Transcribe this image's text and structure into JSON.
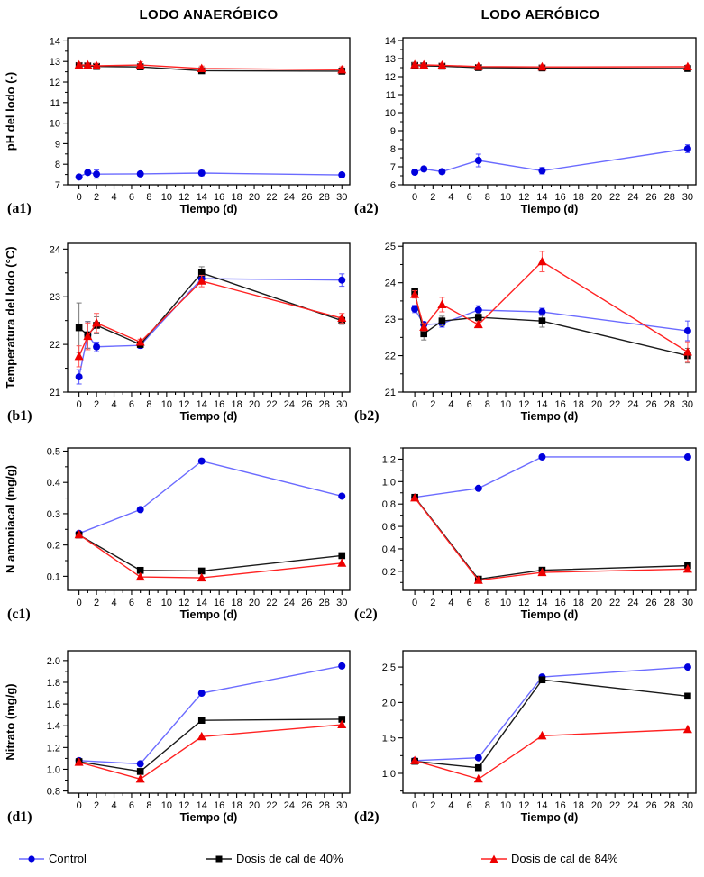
{
  "figure": {
    "columns": [
      "LODO ANAERÓBICO",
      "LODO AERÓBICO"
    ],
    "xlabel": "Tiempo (d)",
    "legend": [
      {
        "label": "Control",
        "marker": "circle",
        "marker_color": "#0000dd",
        "line_color": "#6b6bff",
        "err_color": "#5555ff"
      },
      {
        "label": "Dosis de cal de 40%",
        "marker": "square",
        "marker_color": "#000000",
        "line_color": "#1a1a1a",
        "err_color": "#777777"
      },
      {
        "label": "Dosis de cal de 84%",
        "marker": "triangle",
        "marker_color": "#ee0000",
        "line_color": "#ff2222",
        "err_color": "#ff5555"
      }
    ]
  },
  "chart_data": [
    {
      "id": "a1",
      "type": "line",
      "panel_label": "(a1)",
      "row": "a",
      "column": 0,
      "title": "LODO ANAERÓBICO",
      "xlabel": "Tiempo (d)",
      "ylabel": "pH del lodo (-)",
      "xlim": [
        -1.3,
        30.9
      ],
      "xtick_step": 2,
      "xminor_step": 1,
      "ylim": [
        7,
        14.15
      ],
      "yticks": [
        7,
        8,
        9,
        10,
        11,
        12,
        13,
        14
      ],
      "ydecimals": 0,
      "x": [
        0,
        1,
        2,
        7,
        14,
        30
      ],
      "series": [
        {
          "name": "Control",
          "values": [
            7.38,
            7.6,
            7.52,
            7.53,
            7.57,
            7.48
          ],
          "err": [
            0.08,
            0.06,
            0.2,
            0.1,
            0.13,
            0.1
          ]
        },
        {
          "name": "Dosis de cal de 40%",
          "values": [
            12.8,
            12.79,
            12.76,
            12.74,
            12.55,
            12.53
          ],
          "err": [
            0.1,
            0.1,
            0.12,
            0.12,
            0.1,
            0.12
          ]
        },
        {
          "name": "Dosis de cal de 84%",
          "values": [
            12.83,
            12.83,
            12.79,
            12.83,
            12.66,
            12.6
          ],
          "err": [
            0.1,
            0.1,
            0.12,
            0.15,
            0.12,
            0.14
          ]
        }
      ]
    },
    {
      "id": "a2",
      "type": "line",
      "panel_label": "(a2)",
      "row": "a",
      "column": 1,
      "title": "LODO AERÓBICO",
      "xlabel": "Tiempo (d)",
      "ylabel": "",
      "xlim": [
        -1.3,
        30.9
      ],
      "xtick_step": 2,
      "xminor_step": 1,
      "ylim": [
        6,
        14.15
      ],
      "yticks": [
        6,
        7,
        8,
        9,
        10,
        11,
        12,
        13,
        14
      ],
      "ydecimals": 0,
      "x": [
        0,
        1,
        3,
        7,
        14,
        30
      ],
      "series": [
        {
          "name": "Control",
          "values": [
            6.7,
            6.88,
            6.73,
            7.35,
            6.78,
            8.0
          ],
          "err": [
            0.1,
            0.12,
            0.12,
            0.35,
            0.18,
            0.22
          ]
        },
        {
          "name": "Dosis de cal de 40%",
          "values": [
            12.62,
            12.6,
            12.58,
            12.5,
            12.48,
            12.45
          ],
          "err": [
            0.12,
            0.12,
            0.12,
            0.12,
            0.1,
            0.1
          ]
        },
        {
          "name": "Dosis de cal de 84%",
          "values": [
            12.66,
            12.65,
            12.63,
            12.56,
            12.54,
            12.55
          ],
          "err": [
            0.1,
            0.1,
            0.12,
            0.1,
            0.1,
            0.1
          ]
        }
      ]
    },
    {
      "id": "b1",
      "type": "line",
      "panel_label": "(b1)",
      "row": "b",
      "column": 0,
      "xlabel": "Tiempo (d)",
      "ylabel": "Temperatura del lodo (°C)",
      "xlim": [
        -1.3,
        30.9
      ],
      "xtick_step": 2,
      "xminor_step": 1,
      "ylim": [
        21,
        24.12
      ],
      "yticks": [
        21,
        22,
        23,
        24
      ],
      "ydecimals": 0,
      "x": [
        0,
        1,
        2,
        7,
        14,
        30
      ],
      "series": [
        {
          "name": "Control",
          "values": [
            21.32,
            22.2,
            21.95,
            21.98,
            23.38,
            23.35
          ],
          "err": [
            0.15,
            0.28,
            0.1,
            0.06,
            0.1,
            0.13
          ]
        },
        {
          "name": "Dosis de cal de 40%",
          "values": [
            22.35,
            22.2,
            22.4,
            22.0,
            23.5,
            22.5
          ],
          "err": [
            0.52,
            0.28,
            0.18,
            0.06,
            0.13,
            0.08
          ]
        },
        {
          "name": "Dosis de cal de 84%",
          "values": [
            21.75,
            22.17,
            22.45,
            22.05,
            23.33,
            22.55
          ],
          "err": [
            0.22,
            0.28,
            0.2,
            0.06,
            0.12,
            0.1
          ]
        }
      ]
    },
    {
      "id": "b2",
      "type": "line",
      "panel_label": "(b2)",
      "row": "b",
      "column": 1,
      "xlabel": "Tiempo (d)",
      "ylabel": "",
      "xlim": [
        -1.3,
        30.9
      ],
      "xtick_step": 2,
      "xminor_step": 1,
      "ylim": [
        21,
        25.08
      ],
      "yticks": [
        21,
        22,
        23,
        24,
        25
      ],
      "ydecimals": 0,
      "x": [
        0,
        1,
        3,
        7,
        14,
        30
      ],
      "series": [
        {
          "name": "Control",
          "values": [
            23.28,
            22.85,
            22.88,
            23.25,
            23.2,
            22.68
          ],
          "err": [
            0.1,
            0.08,
            0.1,
            0.12,
            0.1,
            0.27
          ]
        },
        {
          "name": "Dosis de cal de 40%",
          "values": [
            23.75,
            22.6,
            22.95,
            23.05,
            22.95,
            22.0
          ],
          "err": [
            0.08,
            0.17,
            0.13,
            0.1,
            0.17,
            0.2
          ]
        },
        {
          "name": "Dosis de cal de 84%",
          "values": [
            23.68,
            22.78,
            23.4,
            22.85,
            24.58,
            22.1
          ],
          "err": [
            0.1,
            0.1,
            0.2,
            0.08,
            0.28,
            0.28
          ]
        }
      ]
    },
    {
      "id": "c1",
      "type": "line",
      "panel_label": "(c1)",
      "row": "c",
      "column": 0,
      "xlabel": "Tiempo (d)",
      "ylabel": "N amoniacal (mg/g)",
      "xlim": [
        -1.3,
        30.9
      ],
      "xtick_step": 2,
      "xminor_step": 1,
      "ylim": [
        0.055,
        0.51
      ],
      "yticks": [
        0.1,
        0.2,
        0.3,
        0.4,
        0.5
      ],
      "ydecimals": 1,
      "x": [
        0,
        7,
        14,
        30
      ],
      "series": [
        {
          "name": "Control",
          "values": [
            0.237,
            0.313,
            0.468,
            0.356
          ]
        },
        {
          "name": "Dosis de cal de 40%",
          "values": [
            0.232,
            0.119,
            0.117,
            0.166
          ]
        },
        {
          "name": "Dosis de cal de 84%",
          "values": [
            0.233,
            0.098,
            0.095,
            0.142
          ]
        }
      ]
    },
    {
      "id": "c2",
      "type": "line",
      "panel_label": "(c2)",
      "row": "c",
      "column": 1,
      "xlabel": "Tiempo (d)",
      "ylabel": "",
      "xlim": [
        -1.3,
        30.9
      ],
      "xtick_step": 2,
      "xminor_step": 1,
      "ylim": [
        0.03,
        1.3
      ],
      "yticks": [
        0.2,
        0.4,
        0.6,
        0.8,
        1.0,
        1.2
      ],
      "ydecimals": 1,
      "x": [
        0,
        7,
        14,
        30
      ],
      "series": [
        {
          "name": "Control",
          "values": [
            0.86,
            0.94,
            1.22,
            1.22
          ]
        },
        {
          "name": "Dosis de cal de 40%",
          "values": [
            0.86,
            0.13,
            0.21,
            0.25
          ]
        },
        {
          "name": "Dosis de cal de 84%",
          "values": [
            0.855,
            0.12,
            0.19,
            0.22
          ]
        }
      ]
    },
    {
      "id": "d1",
      "type": "line",
      "panel_label": "(d1)",
      "row": "d",
      "column": 0,
      "xlabel": "Tiempo (d)",
      "ylabel": "Nitrato (mg/g)",
      "xlim": [
        -1.3,
        30.9
      ],
      "xtick_step": 2,
      "xminor_step": 1,
      "ylim": [
        0.78,
        2.09
      ],
      "yticks": [
        0.8,
        1.0,
        1.2,
        1.4,
        1.6,
        1.8,
        2.0
      ],
      "ydecimals": 1,
      "x": [
        0,
        7,
        14,
        30
      ],
      "series": [
        {
          "name": "Control",
          "values": [
            1.08,
            1.05,
            1.7,
            1.95
          ]
        },
        {
          "name": "Dosis de cal de 40%",
          "values": [
            1.07,
            0.98,
            1.45,
            1.46
          ]
        },
        {
          "name": "Dosis de cal de 84%",
          "values": [
            1.065,
            0.91,
            1.3,
            1.41
          ]
        }
      ]
    },
    {
      "id": "d2",
      "type": "line",
      "panel_label": "(d2)",
      "row": "d",
      "column": 1,
      "xlabel": "Tiempo (d)",
      "ylabel": "",
      "xlim": [
        -1.3,
        30.9
      ],
      "xtick_step": 2,
      "xminor_step": 1,
      "ylim": [
        0.72,
        2.73
      ],
      "yticks": [
        1.0,
        1.5,
        2.0,
        2.5
      ],
      "ydecimals": 1,
      "x": [
        0,
        7,
        14,
        30
      ],
      "series": [
        {
          "name": "Control",
          "values": [
            1.18,
            1.22,
            2.36,
            2.5
          ]
        },
        {
          "name": "Dosis de cal de 40%",
          "values": [
            1.17,
            1.08,
            2.32,
            2.09
          ]
        },
        {
          "name": "Dosis de cal de 84%",
          "values": [
            1.18,
            0.92,
            1.53,
            1.62
          ]
        }
      ]
    }
  ]
}
